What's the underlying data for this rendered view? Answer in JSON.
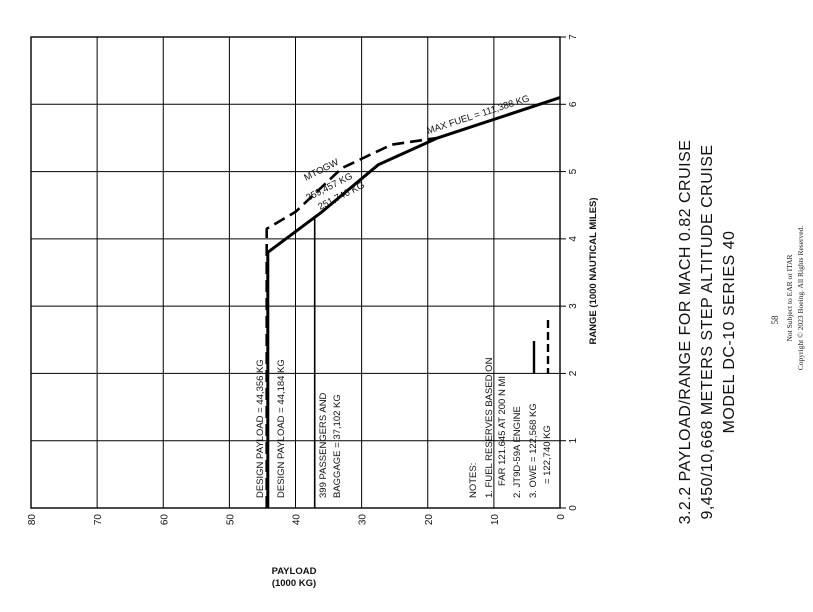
{
  "chart_data": {
    "type": "line",
    "xlabel": "RANGE (1000 NAUTICAL MILES)",
    "ylabel": [
      "PAYLOAD",
      "(1000 KG)"
    ],
    "xlim": [
      0,
      7
    ],
    "ylim": [
      0,
      80
    ],
    "x_ticks": [
      "0",
      "1",
      "2",
      "3",
      "4",
      "5",
      "6",
      "7"
    ],
    "y_ticks": [
      "0",
      "10",
      "20",
      "30",
      "40",
      "50",
      "60",
      "70",
      "80"
    ],
    "grid": true,
    "series": [
      {
        "style": "solid",
        "points": [
          [
            0,
            44.184
          ],
          [
            3.8,
            44.184
          ],
          [
            4.4,
            36
          ],
          [
            5.1,
            27.5
          ],
          [
            5.5,
            18.5
          ],
          [
            6.1,
            0
          ]
        ]
      },
      {
        "style": "dashed",
        "points": [
          [
            0,
            44.356
          ],
          [
            4.15,
            44.356
          ],
          [
            4.4,
            40
          ],
          [
            5.05,
            33
          ],
          [
            5.4,
            25.5
          ],
          [
            5.5,
            18.5
          ]
        ]
      },
      {
        "style": "solid-thin",
        "points": [
          [
            0,
            37.102
          ],
          [
            4.3,
            37.102
          ]
        ]
      }
    ],
    "annotations": {
      "max_fuel": "MAX FUEL = 111,388 KG",
      "mtogw": "MTOGW",
      "mtogw_dashed": "259,457 KG",
      "mtogw_solid": "251,746 KG",
      "design_payload_dashed": "DESIGN PAYLOAD = 44,356 KG",
      "design_payload_solid": "DESIGN PAYLOAD = 44,184 KG",
      "passengers_line1": "399 PASSENGERS AND",
      "passengers_line2": "BAGGAGE = 37,102 KG"
    },
    "notes": {
      "heading": "NOTES:",
      "line1": "1.  FUEL RESERVES BASED ON",
      "line2": "FAR 121.645 AT 200 N MI",
      "line3": "2.  JT9D-59A ENGINE",
      "line4": "3.  OWE = 122,568 KG",
      "line5": "= 122,740 KG"
    }
  },
  "title": {
    "line1": "3.2.2  PAYLOAD/RANGE FOR MACH 0.82 CRUISE",
    "line2": "9,450/10,668 METERS STEP ALTITUDE CRUISE",
    "line3": "MODEL DC-10 SERIES 40"
  },
  "footer": {
    "page_number": "58",
    "line1": "Not Subject to EAR or ITAR",
    "line2": "Copyright © 2023 Boeing. All Rights Reserved."
  }
}
